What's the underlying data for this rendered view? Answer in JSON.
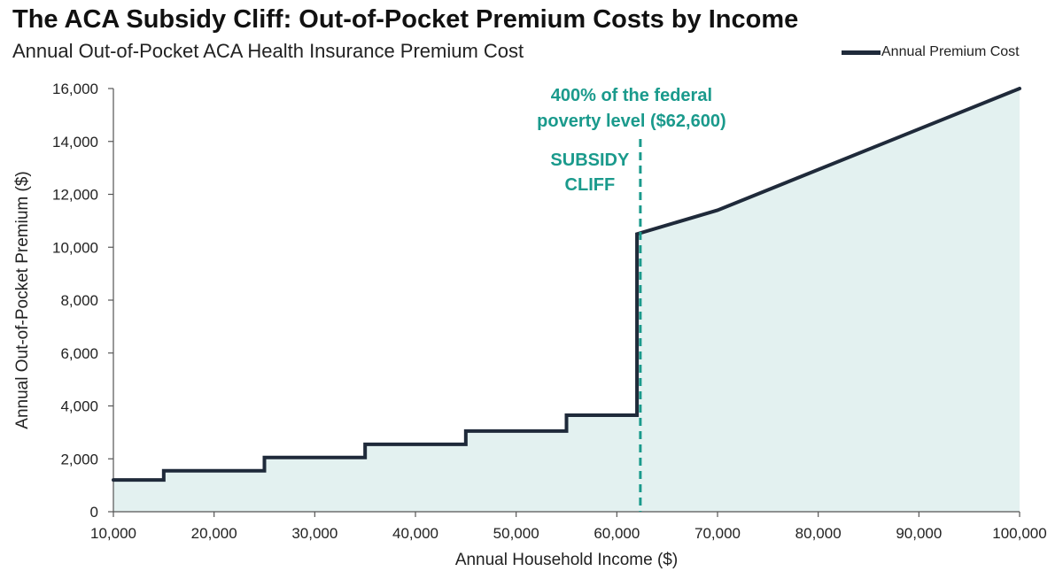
{
  "chart_data": {
    "type": "line",
    "title": "The ACA Subsidy Cliff: Out-of-Pocket Premium Costs by Income",
    "subtitle": "Annual Out-of-Pocket ACA Health Insurance Premium Cost",
    "xlabel": "Annual Household Income ($)",
    "ylabel": "Annual Out-of-Pocket Premium ($)",
    "xlim": [
      10000,
      100000
    ],
    "ylim": [
      0,
      16000
    ],
    "x_ticks": [
      10000,
      20000,
      30000,
      40000,
      50000,
      60000,
      70000,
      80000,
      90000,
      100000
    ],
    "x_tick_labels": [
      "10,000",
      "20,000",
      "30,000",
      "40,000",
      "50,000",
      "60,000",
      "70,000",
      "80,000",
      "90,000",
      "100,000"
    ],
    "y_ticks": [
      0,
      2000,
      4000,
      6000,
      8000,
      10000,
      12000,
      14000,
      16000
    ],
    "y_tick_labels": [
      "0",
      "2,000",
      "4,000",
      "6,000",
      "8,000",
      "10,000",
      "12,000",
      "14,000",
      "16,000"
    ],
    "grid": false,
    "legend_position": "top-right",
    "series": [
      {
        "name": "Annual Premium Cost",
        "color": "#1f2a3a",
        "fill_color": "#e3f1f0",
        "points": [
          [
            10000,
            1200
          ],
          [
            15000,
            1200
          ],
          [
            15000,
            1550
          ],
          [
            25000,
            1550
          ],
          [
            25000,
            2050
          ],
          [
            35000,
            2050
          ],
          [
            35000,
            2550
          ],
          [
            45000,
            2550
          ],
          [
            45000,
            3050
          ],
          [
            55000,
            3050
          ],
          [
            55000,
            3650
          ],
          [
            62000,
            3650
          ],
          [
            62000,
            10500
          ],
          [
            70000,
            11400
          ],
          [
            100000,
            16000
          ]
        ]
      }
    ],
    "annotations": [
      {
        "type": "vline",
        "x": 62600,
        "color": "#1a9a8c",
        "label_lines": [
          "400% of the federal",
          "poverty level ($62,600)"
        ],
        "sub_label_lines": [
          "SUBSIDY",
          "CLIFF"
        ]
      }
    ]
  }
}
